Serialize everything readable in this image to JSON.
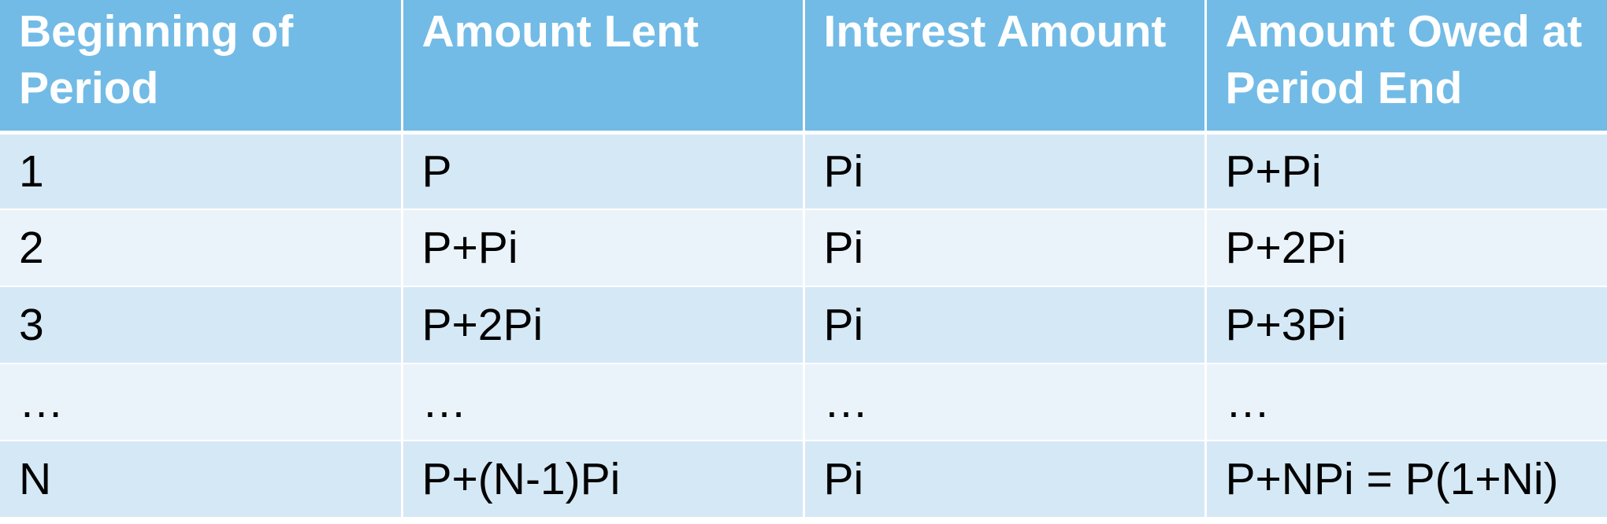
{
  "table": {
    "headers": [
      "Beginning of Period",
      "Amount Lent",
      "Interest Amount",
      "Amount Owed at Period End"
    ],
    "rows": [
      [
        "1",
        "P",
        "Pi",
        "P+Pi"
      ],
      [
        "2",
        "P+Pi",
        "Pi",
        "P+2Pi"
      ],
      [
        "3",
        "P+2Pi",
        "Pi",
        "P+3Pi"
      ],
      [
        "…",
        "…",
        "…",
        "…"
      ],
      [
        "N",
        "P+(N-1)Pi",
        "Pi",
        "P+NPi = P(1+Ni)"
      ]
    ]
  },
  "colors": {
    "header_bg": "#72bbe6",
    "row_odd_bg": "#d5e8f5",
    "row_even_bg": "#eaf3fa"
  }
}
